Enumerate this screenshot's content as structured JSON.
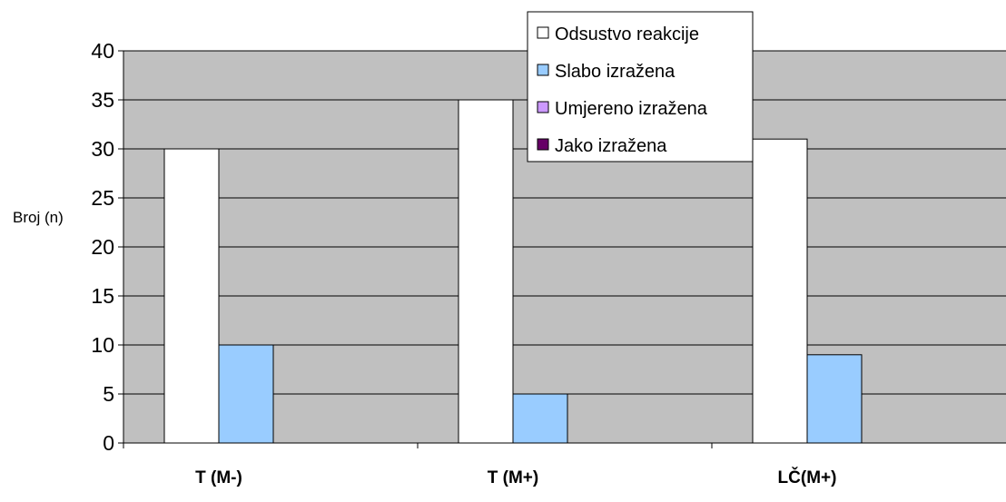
{
  "chart_data": {
    "type": "bar",
    "ylabel": "Broj (n)",
    "xlabel": "",
    "ylim": [
      0,
      40
    ],
    "yticks": [
      0,
      5,
      10,
      15,
      20,
      25,
      30,
      35,
      40
    ],
    "grid": true,
    "legend_position": "top-center",
    "categories": [
      "T (M-)",
      "T (M+)",
      "LČ(M+)"
    ],
    "series": [
      {
        "name": "Odsustvo reakcije",
        "color": "#ffffff",
        "values": [
          30,
          35,
          31
        ]
      },
      {
        "name": "Slabo izražena",
        "color": "#99ccff",
        "values": [
          10,
          5,
          9
        ]
      },
      {
        "name": "Umjereno izražena",
        "color": "#cc99ff",
        "values": [
          0,
          0,
          0
        ]
      },
      {
        "name": "Jako izražena",
        "color": "#660066",
        "values": [
          0,
          0,
          0
        ]
      }
    ],
    "plot_background": "#c0c0c0"
  }
}
